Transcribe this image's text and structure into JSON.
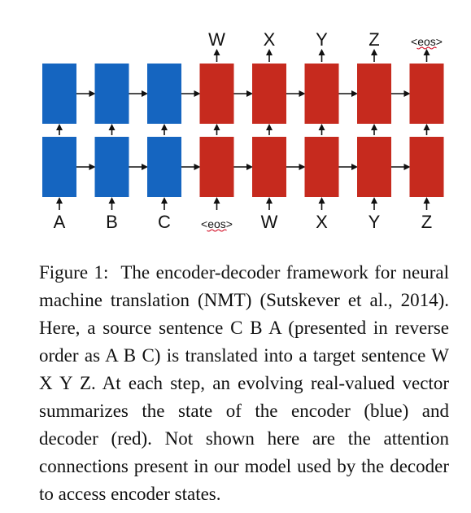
{
  "diagram": {
    "columns": [
      {
        "role": "encoder",
        "input": "A",
        "output": ""
      },
      {
        "role": "encoder",
        "input": "B",
        "output": ""
      },
      {
        "role": "encoder",
        "input": "C",
        "output": ""
      },
      {
        "role": "decoder",
        "input": "<eos>",
        "output": "W"
      },
      {
        "role": "decoder",
        "input": "W",
        "output": "X"
      },
      {
        "role": "decoder",
        "input": "X",
        "output": "Y"
      },
      {
        "role": "decoder",
        "input": "Y",
        "output": "Z"
      },
      {
        "role": "decoder",
        "input": "Z",
        "output": "<eos>"
      }
    ],
    "layers": 2,
    "colors": {
      "encoder": "#1565c0",
      "decoder": "#c62a1e",
      "arrow": "#111111",
      "spellcheck": "#d0021b"
    }
  },
  "caption": {
    "label": "Figure 1:",
    "text": "The encoder-decoder framework for neural machine translation (NMT) (Sutskever et al., 2014). Here, a source sentence C B A (presented in reverse order as A B C) is translated into a target sentence W X Y Z. At each step, an evolving real-valued vector summarizes the state of the encoder (blue) and decoder (red). Not shown here are the attention connections present in our model used by the decoder to access encoder states."
  }
}
